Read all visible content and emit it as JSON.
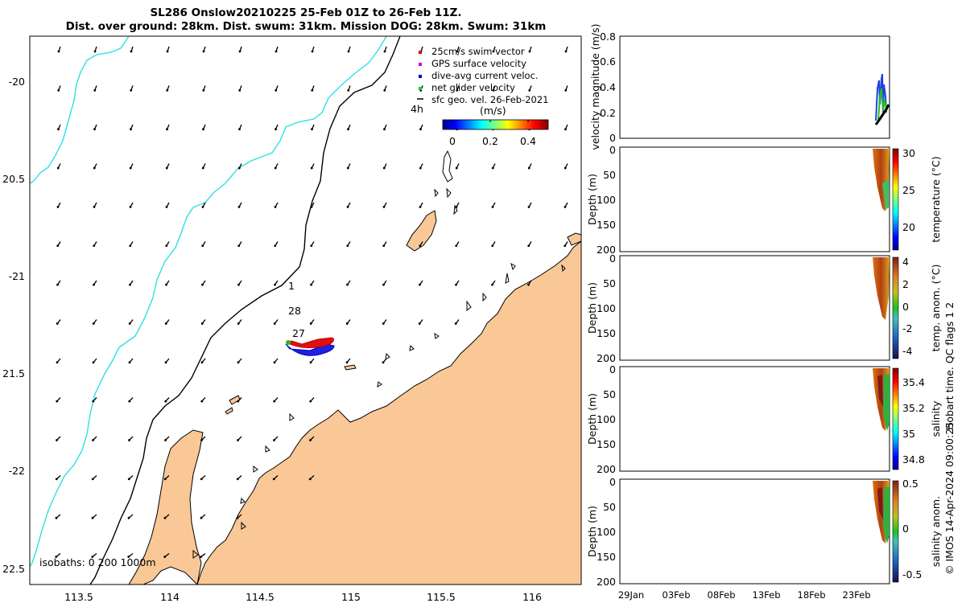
{
  "title": {
    "line1": "SL286 Onslow20210225 25-Feb 01Z to 26-Feb 11Z.",
    "line2": "Dist. over ground: 28km. Dist. swum: 31km. Mission DOG: 28km. Swum: 31km"
  },
  "map": {
    "lon_ticks": [
      "113.5",
      "114",
      "114.5",
      "115",
      "115.5",
      "116"
    ],
    "lat_ticks": [
      "-20",
      "20.5",
      "-21",
      "21.5",
      "-22",
      "22.5"
    ],
    "legend": [
      {
        "label": "25cm/s swim vector",
        "color": "#e00000"
      },
      {
        "label": "GPS surface velocity",
        "color": "#d000d0"
      },
      {
        "label": "dive-avg current veloc.",
        "color": "#0000e0"
      },
      {
        "label": "net glider velocity",
        "color": "#20d020"
      },
      {
        "label": "sfc geo. vel. 26-Feb-2021",
        "color": "#000000"
      }
    ],
    "colorbar": {
      "label": "(m/s)",
      "ticks": [
        "0",
        "0.2",
        "0.4"
      ],
      "time_label": "4h"
    },
    "track_labels": [
      "1",
      "28",
      "27"
    ],
    "isobaths_label": "isobaths: 0   200  1000m",
    "colors": {
      "land": "#f9c896",
      "isobath_200": "#000000",
      "isobath_1000": "#30e0e0"
    }
  },
  "panels": {
    "velocity": {
      "ylabel": "velocity magnitude (m/s)",
      "ticks": [
        "0.8",
        "0.6",
        "0.4",
        "0.2",
        "0"
      ]
    },
    "depth_ticks": [
      "0",
      "50",
      "100",
      "150",
      "200"
    ],
    "depth_label": "Depth (m)",
    "temperature": {
      "label": "temperature (°C)",
      "ticks": [
        "30",
        "25",
        "20"
      ]
    },
    "temp_anom": {
      "label": "temp. anom. (°C)",
      "ticks": [
        "4",
        "2",
        "0",
        "-2",
        "-4"
      ]
    },
    "salinity": {
      "label": "salinity",
      "ticks": [
        "35.4",
        "35.2",
        "35",
        "34.8"
      ]
    },
    "sal_anom": {
      "label": "salinity anom.",
      "ticks": [
        "0.5",
        "0",
        "-0.5"
      ]
    },
    "time_ticks": [
      "29Jan",
      "03Feb",
      "08Feb",
      "13Feb",
      "18Feb",
      "23Feb"
    ]
  },
  "side_text": {
    "qc": "Hobart time. QC flags 1  2",
    "credit": "© IMOS 14-Apr-2024 09:00:25"
  }
}
